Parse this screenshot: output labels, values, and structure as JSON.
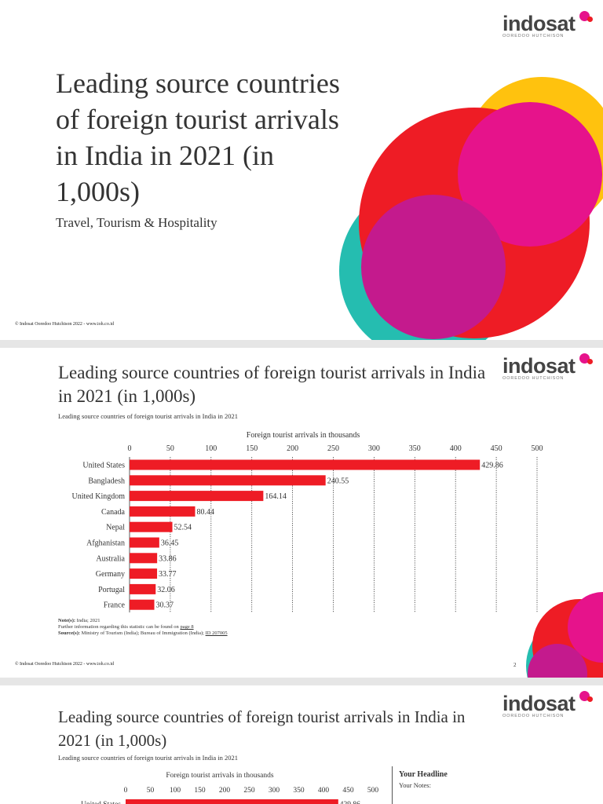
{
  "brand": {
    "name": "indosat",
    "tagline": "OOREDOO HUTCHISON"
  },
  "colors": {
    "red": "#ee1c25",
    "yellow": "#ffc20e",
    "magenta": "#e6138b",
    "teal": "#25bdb0",
    "purple": "#c41a8d",
    "bar": "#ee1c25"
  },
  "slide1": {
    "title": "Leading source countries of foreign tourist arrivals in India in 2021 (in 1,000s)",
    "subtitle": "Travel, Tourism & Hospitality",
    "footer": "© Indosat Ooredoo Hutchison 2022 - www.ioh.co.id"
  },
  "slide2": {
    "title": "Leading source countries of foreign tourist arrivals in India in 2021 (in 1,000s)",
    "caption": "Leading source countries of foreign tourist arrivals in India in 2021",
    "note_label": "Note(s):",
    "note_text": "India; 2021",
    "further_info": "Further information regarding this statistic can be found on",
    "further_link": "page 8",
    "source_label": "Source(s):",
    "source_text": "Ministry of Tourism (India); Bureau of Immigration (India);",
    "source_id": "ID 207005",
    "footer": "© Indosat Ooredoo Hutchison 2022 - www.ioh.co.id",
    "page_number": "2"
  },
  "slide3": {
    "title": "Leading source countries of foreign tourist arrivals in India in 2021 (in 1,000s)",
    "caption": "Leading source countries of foreign tourist arrivals in India in 2021",
    "headline": "Your Headline",
    "notes": "Your Notes:"
  },
  "chart_data": {
    "type": "bar",
    "orientation": "horizontal",
    "xlabel": "Foreign tourist arrivals in thousands",
    "xlim": [
      0,
      500
    ],
    "ticks": [
      0,
      50,
      100,
      150,
      200,
      250,
      300,
      350,
      400,
      450,
      500
    ],
    "grid": true,
    "categories": [
      "United States",
      "Bangladesh",
      "United Kingdom",
      "Canada",
      "Nepal",
      "Afghanistan",
      "Australia",
      "Germany",
      "Portugal",
      "France"
    ],
    "values": [
      429.86,
      240.55,
      164.14,
      80.44,
      52.54,
      36.45,
      33.86,
      33.77,
      32.06,
      30.37
    ],
    "value_labels": [
      "429.86",
      "240.55",
      "164.14",
      "80.44",
      "52.54",
      "36.45",
      "33.86",
      "33.77",
      "32.06",
      "30.37"
    ],
    "partial_slide3": {
      "first_category": "United States",
      "first_value_label": "429.86"
    }
  }
}
